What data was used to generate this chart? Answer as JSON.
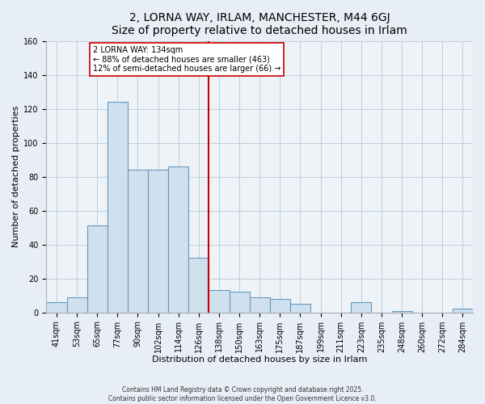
{
  "title": "2, LORNA WAY, IRLAM, MANCHESTER, M44 6GJ",
  "subtitle": "Size of property relative to detached houses in Irlam",
  "xlabel": "Distribution of detached houses by size in Irlam",
  "ylabel": "Number of detached properties",
  "bar_labels": [
    "41sqm",
    "53sqm",
    "65sqm",
    "77sqm",
    "90sqm",
    "102sqm",
    "114sqm",
    "126sqm",
    "138sqm",
    "150sqm",
    "163sqm",
    "175sqm",
    "187sqm",
    "199sqm",
    "211sqm",
    "223sqm",
    "235sqm",
    "248sqm",
    "260sqm",
    "272sqm",
    "284sqm"
  ],
  "bar_values": [
    6,
    9,
    51,
    124,
    84,
    84,
    86,
    32,
    13,
    12,
    9,
    8,
    5,
    0,
    0,
    6,
    0,
    1,
    0,
    0,
    2
  ],
  "bar_color": "#cfe0ef",
  "bar_edge_color": "#6699bb",
  "vline_x": 7.5,
  "vline_color": "#cc0000",
  "annotation_title": "2 LORNA WAY: 134sqm",
  "annotation_line1": "← 88% of detached houses are smaller (463)",
  "annotation_line2": "12% of semi-detached houses are larger (66) →",
  "annotation_box_color": "#ffffff",
  "annotation_box_edge": "#cc0000",
  "ylim": [
    0,
    160
  ],
  "yticks": [
    0,
    20,
    40,
    60,
    80,
    100,
    120,
    140,
    160
  ],
  "footer1": "Contains HM Land Registry data © Crown copyright and database right 2025.",
  "footer2": "Contains public sector information licensed under the Open Government Licence v3.0.",
  "bg_color": "#e8eef5",
  "plot_bg_color": "#eef3f8",
  "title_fontsize": 10,
  "axis_label_fontsize": 8,
  "tick_fontsize": 7
}
